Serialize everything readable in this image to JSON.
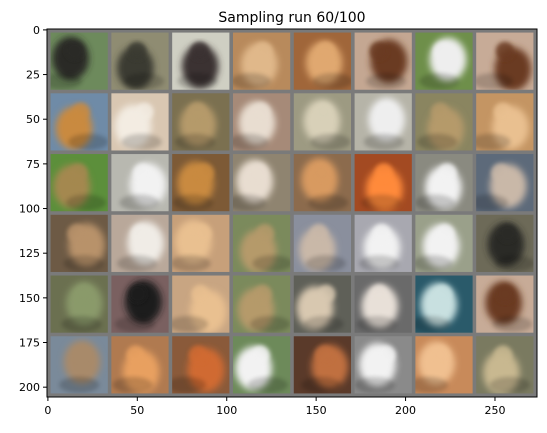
{
  "figure": {
    "title": "Sampling run 60/100",
    "background_color": "#ffffff"
  },
  "image_grid": {
    "rows": 6,
    "cols": 8,
    "separator_color": "#7a7a7a",
    "subject": "dog photographs (blurry, low resolution samples)",
    "tile_colors": [
      [
        "#6d8a5c",
        "#8f8c72",
        "#cfcfc3",
        "#b88a5c",
        "#a0663a",
        "#c4a792",
        "#6e8f4a",
        "#c7ab97"
      ],
      [
        "#6f8ba7",
        "#d9c7b2",
        "#7b7050",
        "#a68a78",
        "#9d9a82",
        "#b6b4a8",
        "#8a8560",
        "#c49563"
      ],
      [
        "#5c8f3b",
        "#b8b8b0",
        "#7d5a36",
        "#8f8470",
        "#8c6b4d",
        "#a34a22",
        "#8a8a80",
        "#5d6a7a"
      ],
      [
        "#6d5a45",
        "#b9a89a",
        "#c7a07a",
        "#7b8a5c",
        "#8a8f9d",
        "#a8a8b0",
        "#9aa08a",
        "#6d6a58"
      ],
      [
        "#6b7050",
        "#7a6060",
        "#c8a582",
        "#7b8a5c",
        "#5f6058",
        "#6a6a6a",
        "#2a5a6a",
        "#c7ab97"
      ],
      [
        "#7a8a9a",
        "#b07a50",
        "#8a5a3a",
        "#6d8a5a",
        "#5a3a2a",
        "#8a8a8a",
        "#c88a5a",
        "#7a7a60"
      ]
    ],
    "tile_accents": [
      [
        "#2b2b28",
        "#3a3a30",
        "#3a3330",
        "#e0b88a",
        "#e0a870",
        "#6a3a20",
        "#eeeeee",
        "#6a3a20"
      ],
      [
        "#c98a40",
        "#f3ece2",
        "#b59a6a",
        "#e8ddd0",
        "#d8d0b8",
        "#eeeeee",
        "#b59a6a",
        "#e9c090"
      ],
      [
        "#a48850",
        "#f2f2f2",
        "#c98a40",
        "#e8ddd0",
        "#d89a60",
        "#ff8a3a",
        "#f2f2f2",
        "#c9b8a8"
      ],
      [
        "#b8926a",
        "#f0ece6",
        "#e9c090",
        "#b59a6a",
        "#c9b8a8",
        "#f2f2f2",
        "#f2f2f2",
        "#2b2b28"
      ],
      [
        "#8a9a6a",
        "#1e1e1e",
        "#e9c090",
        "#b59a6a",
        "#d8c8b0",
        "#e8e0d8",
        "#c8e0e0",
        "#6a3a20"
      ],
      [
        "#a88a6a",
        "#e8a060",
        "#d06a30",
        "#f2f2f2",
        "#c07040",
        "#f2f2f2",
        "#f0c090",
        "#c8b890"
      ]
    ]
  },
  "axes": {
    "x_tick_labels": [
      "0",
      "50",
      "100",
      "150",
      "200",
      "250"
    ],
    "x_tick_values": [
      0,
      50,
      100,
      150,
      200,
      250
    ],
    "y_tick_labels": [
      "0",
      "25",
      "50",
      "75",
      "100",
      "125",
      "150",
      "175",
      "200"
    ],
    "y_tick_values": [
      0,
      25,
      50,
      75,
      100,
      125,
      150,
      175,
      200
    ],
    "x_range": [
      -0.5,
      273.5
    ],
    "y_range": [
      -0.5,
      205.5
    ]
  }
}
